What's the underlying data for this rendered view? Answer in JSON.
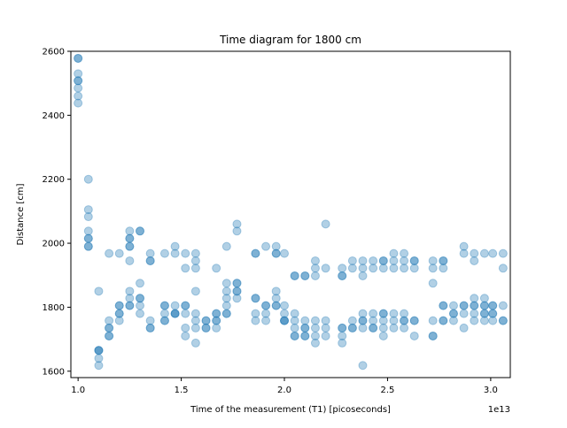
{
  "chart_data": {
    "type": "scatter",
    "title": "Time diagram for 1800 cm",
    "xlabel": "Time of the measurement (T1) [picoseconds]",
    "ylabel": "Distance [cm]",
    "x_offset_label": "1e13",
    "xlim": [
      0.965,
      3.095
    ],
    "ylim": [
      1580,
      2600
    ],
    "xticks": [
      1.0,
      1.5,
      2.0,
      2.5,
      3.0
    ],
    "xtick_labels": [
      "1.0",
      "1.5",
      "2.0",
      "2.5",
      "3.0"
    ],
    "yticks": [
      1600,
      1800,
      2000,
      2200,
      2400,
      2600
    ],
    "ytick_labels": [
      "1600",
      "1800",
      "2000",
      "2200",
      "2400",
      "2600"
    ],
    "grid": false,
    "marker_color": "#1f77b4",
    "marker_alpha": 0.35,
    "points": [
      [
        1.0,
        2578
      ],
      [
        1.0,
        2578
      ],
      [
        1.0,
        2530
      ],
      [
        1.0,
        2508
      ],
      [
        1.0,
        2508
      ],
      [
        1.0,
        2485
      ],
      [
        1.0,
        2460
      ],
      [
        1.0,
        2438
      ],
      [
        1.05,
        2200
      ],
      [
        1.05,
        2105
      ],
      [
        1.05,
        2083
      ],
      [
        1.05,
        2038
      ],
      [
        1.05,
        2015
      ],
      [
        1.05,
        2015
      ],
      [
        1.05,
        1990
      ],
      [
        1.05,
        1990
      ],
      [
        1.1,
        1850
      ],
      [
        1.1,
        1665
      ],
      [
        1.1,
        1665
      ],
      [
        1.1,
        1665
      ],
      [
        1.1,
        1640
      ],
      [
        1.1,
        1618
      ],
      [
        1.15,
        1968
      ],
      [
        1.15,
        1758
      ],
      [
        1.15,
        1735
      ],
      [
        1.15,
        1735
      ],
      [
        1.15,
        1710
      ],
      [
        1.15,
        1710
      ],
      [
        1.2,
        1968
      ],
      [
        1.2,
        1805
      ],
      [
        1.2,
        1805
      ],
      [
        1.2,
        1780
      ],
      [
        1.2,
        1780
      ],
      [
        1.2,
        1758
      ],
      [
        1.25,
        2038
      ],
      [
        1.25,
        2015
      ],
      [
        1.25,
        2015
      ],
      [
        1.25,
        1990
      ],
      [
        1.25,
        1990
      ],
      [
        1.25,
        1945
      ],
      [
        1.25,
        1850
      ],
      [
        1.25,
        1828
      ],
      [
        1.25,
        1805
      ],
      [
        1.25,
        1805
      ],
      [
        1.3,
        2038
      ],
      [
        1.3,
        2038
      ],
      [
        1.3,
        1875
      ],
      [
        1.3,
        1828
      ],
      [
        1.3,
        1828
      ],
      [
        1.3,
        1805
      ],
      [
        1.3,
        1780
      ],
      [
        1.35,
        1968
      ],
      [
        1.35,
        1945
      ],
      [
        1.35,
        1945
      ],
      [
        1.35,
        1758
      ],
      [
        1.35,
        1735
      ],
      [
        1.35,
        1735
      ],
      [
        1.42,
        1968
      ],
      [
        1.42,
        1805
      ],
      [
        1.42,
        1805
      ],
      [
        1.42,
        1780
      ],
      [
        1.42,
        1758
      ],
      [
        1.42,
        1758
      ],
      [
        1.47,
        1990
      ],
      [
        1.47,
        1968
      ],
      [
        1.47,
        1805
      ],
      [
        1.47,
        1780
      ],
      [
        1.47,
        1780
      ],
      [
        1.47,
        1780
      ],
      [
        1.52,
        1968
      ],
      [
        1.52,
        1922
      ],
      [
        1.52,
        1805
      ],
      [
        1.52,
        1805
      ],
      [
        1.52,
        1780
      ],
      [
        1.52,
        1735
      ],
      [
        1.52,
        1710
      ],
      [
        1.57,
        1968
      ],
      [
        1.57,
        1945
      ],
      [
        1.57,
        1922
      ],
      [
        1.57,
        1850
      ],
      [
        1.57,
        1780
      ],
      [
        1.57,
        1758
      ],
      [
        1.57,
        1735
      ],
      [
        1.57,
        1688
      ],
      [
        1.62,
        1758
      ],
      [
        1.62,
        1758
      ],
      [
        1.62,
        1735
      ],
      [
        1.62,
        1735
      ],
      [
        1.67,
        1922
      ],
      [
        1.67,
        1780
      ],
      [
        1.67,
        1780
      ],
      [
        1.67,
        1758
      ],
      [
        1.67,
        1758
      ],
      [
        1.67,
        1735
      ],
      [
        1.72,
        1990
      ],
      [
        1.72,
        1875
      ],
      [
        1.72,
        1850
      ],
      [
        1.72,
        1828
      ],
      [
        1.72,
        1805
      ],
      [
        1.72,
        1780
      ],
      [
        1.72,
        1780
      ],
      [
        1.77,
        2060
      ],
      [
        1.77,
        2038
      ],
      [
        1.77,
        1875
      ],
      [
        1.77,
        1875
      ],
      [
        1.77,
        1850
      ],
      [
        1.77,
        1850
      ],
      [
        1.77,
        1828
      ],
      [
        1.86,
        1968
      ],
      [
        1.86,
        1968
      ],
      [
        1.86,
        1828
      ],
      [
        1.86,
        1828
      ],
      [
        1.86,
        1780
      ],
      [
        1.86,
        1758
      ],
      [
        1.91,
        1990
      ],
      [
        1.91,
        1805
      ],
      [
        1.91,
        1805
      ],
      [
        1.91,
        1780
      ],
      [
        1.91,
        1758
      ],
      [
        1.96,
        1990
      ],
      [
        1.96,
        1968
      ],
      [
        1.96,
        1968
      ],
      [
        1.96,
        1850
      ],
      [
        1.96,
        1828
      ],
      [
        1.96,
        1805
      ],
      [
        1.96,
        1805
      ],
      [
        2.0,
        1968
      ],
      [
        2.0,
        1805
      ],
      [
        2.0,
        1780
      ],
      [
        2.0,
        1758
      ],
      [
        2.0,
        1758
      ],
      [
        2.0,
        1758
      ],
      [
        2.05,
        1898
      ],
      [
        2.05,
        1898
      ],
      [
        2.05,
        1780
      ],
      [
        2.05,
        1758
      ],
      [
        2.05,
        1735
      ],
      [
        2.05,
        1710
      ],
      [
        2.05,
        1710
      ],
      [
        2.1,
        1898
      ],
      [
        2.1,
        1898
      ],
      [
        2.1,
        1758
      ],
      [
        2.1,
        1735
      ],
      [
        2.1,
        1735
      ],
      [
        2.1,
        1710
      ],
      [
        2.1,
        1710
      ],
      [
        2.15,
        1945
      ],
      [
        2.15,
        1922
      ],
      [
        2.15,
        1898
      ],
      [
        2.15,
        1758
      ],
      [
        2.15,
        1735
      ],
      [
        2.15,
        1710
      ],
      [
        2.15,
        1688
      ],
      [
        2.2,
        2060
      ],
      [
        2.2,
        1922
      ],
      [
        2.2,
        1758
      ],
      [
        2.2,
        1735
      ],
      [
        2.2,
        1710
      ],
      [
        2.28,
        1922
      ],
      [
        2.28,
        1898
      ],
      [
        2.28,
        1898
      ],
      [
        2.28,
        1735
      ],
      [
        2.28,
        1735
      ],
      [
        2.28,
        1710
      ],
      [
        2.28,
        1688
      ],
      [
        2.33,
        1945
      ],
      [
        2.33,
        1922
      ],
      [
        2.33,
        1758
      ],
      [
        2.33,
        1735
      ],
      [
        2.33,
        1735
      ],
      [
        2.38,
        1945
      ],
      [
        2.38,
        1922
      ],
      [
        2.38,
        1898
      ],
      [
        2.38,
        1780
      ],
      [
        2.38,
        1758
      ],
      [
        2.38,
        1758
      ],
      [
        2.38,
        1735
      ],
      [
        2.38,
        1618
      ],
      [
        2.43,
        1945
      ],
      [
        2.43,
        1922
      ],
      [
        2.43,
        1780
      ],
      [
        2.43,
        1758
      ],
      [
        2.43,
        1735
      ],
      [
        2.43,
        1735
      ],
      [
        2.48,
        1945
      ],
      [
        2.48,
        1945
      ],
      [
        2.48,
        1922
      ],
      [
        2.48,
        1780
      ],
      [
        2.48,
        1780
      ],
      [
        2.48,
        1758
      ],
      [
        2.48,
        1735
      ],
      [
        2.48,
        1710
      ],
      [
        2.53,
        1968
      ],
      [
        2.53,
        1945
      ],
      [
        2.53,
        1922
      ],
      [
        2.53,
        1780
      ],
      [
        2.53,
        1758
      ],
      [
        2.53,
        1735
      ],
      [
        2.58,
        1968
      ],
      [
        2.58,
        1945
      ],
      [
        2.58,
        1922
      ],
      [
        2.58,
        1780
      ],
      [
        2.58,
        1758
      ],
      [
        2.58,
        1758
      ],
      [
        2.58,
        1735
      ],
      [
        2.63,
        1945
      ],
      [
        2.63,
        1945
      ],
      [
        2.63,
        1922
      ],
      [
        2.63,
        1758
      ],
      [
        2.63,
        1758
      ],
      [
        2.63,
        1710
      ],
      [
        2.72,
        1945
      ],
      [
        2.72,
        1922
      ],
      [
        2.72,
        1875
      ],
      [
        2.72,
        1758
      ],
      [
        2.72,
        1710
      ],
      [
        2.72,
        1710
      ],
      [
        2.77,
        1945
      ],
      [
        2.77,
        1945
      ],
      [
        2.77,
        1922
      ],
      [
        2.77,
        1805
      ],
      [
        2.77,
        1805
      ],
      [
        2.77,
        1758
      ],
      [
        2.77,
        1758
      ],
      [
        2.82,
        1805
      ],
      [
        2.82,
        1780
      ],
      [
        2.82,
        1780
      ],
      [
        2.82,
        1758
      ],
      [
        2.87,
        1990
      ],
      [
        2.87,
        1968
      ],
      [
        2.87,
        1805
      ],
      [
        2.87,
        1805
      ],
      [
        2.87,
        1780
      ],
      [
        2.87,
        1735
      ],
      [
        2.92,
        1968
      ],
      [
        2.92,
        1945
      ],
      [
        2.92,
        1828
      ],
      [
        2.92,
        1805
      ],
      [
        2.92,
        1805
      ],
      [
        2.92,
        1780
      ],
      [
        2.92,
        1758
      ],
      [
        2.97,
        1968
      ],
      [
        2.97,
        1828
      ],
      [
        2.97,
        1805
      ],
      [
        2.97,
        1805
      ],
      [
        2.97,
        1780
      ],
      [
        2.97,
        1780
      ],
      [
        2.97,
        1758
      ],
      [
        3.01,
        1968
      ],
      [
        3.01,
        1805
      ],
      [
        3.01,
        1805
      ],
      [
        3.01,
        1780
      ],
      [
        3.01,
        1780
      ],
      [
        3.01,
        1758
      ],
      [
        3.06,
        1968
      ],
      [
        3.06,
        1922
      ],
      [
        3.06,
        1805
      ],
      [
        3.06,
        1758
      ],
      [
        3.06,
        1758
      ]
    ]
  }
}
